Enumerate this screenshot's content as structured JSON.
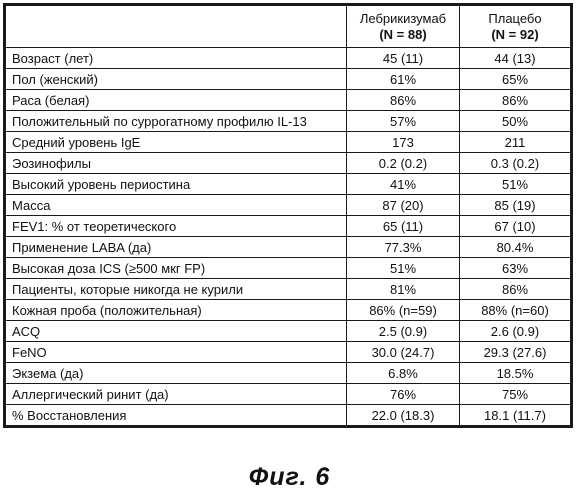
{
  "table": {
    "header": {
      "col1": "",
      "col2": {
        "name": "Лебрикизумаб",
        "n": "(N = 88)"
      },
      "col3": {
        "name": "Плацебо",
        "n": "(N = 92)"
      }
    },
    "rows": [
      {
        "label": "Возраст (лет)",
        "lebrikizumab": "45 (11)",
        "placebo": "44 (13)"
      },
      {
        "label": "Пол (женский)",
        "lebrikizumab": "61%",
        "placebo": "65%"
      },
      {
        "label": "Раса (белая)",
        "lebrikizumab": "86%",
        "placebo": "86%"
      },
      {
        "label": "Положительный по суррогатному профилю IL-13",
        "lebrikizumab": "57%",
        "placebo": "50%"
      },
      {
        "label": "Средний уровень IgE",
        "lebrikizumab": "173",
        "placebo": "211"
      },
      {
        "label": "Эозинофилы",
        "lebrikizumab": "0.2 (0.2)",
        "placebo": "0.3 (0.2)"
      },
      {
        "label": "Высокий уровень периостина",
        "lebrikizumab": "41%",
        "placebo": "51%"
      },
      {
        "label": "Масса",
        "lebrikizumab": "87 (20)",
        "placebo": "85 (19)"
      },
      {
        "label": "FEV1: % от теоретического",
        "lebrikizumab": "65 (11)",
        "placebo": "67 (10)"
      },
      {
        "label": "Применение LABA (да)",
        "lebrikizumab": "77.3%",
        "placebo": "80.4%"
      },
      {
        "label": "Высокая доза ICS (≥500 мкг FP)",
        "lebrikizumab": "51%",
        "placebo": "63%"
      },
      {
        "label": "Пациенты, которые никогда не курили",
        "lebrikizumab": "81%",
        "placebo": "86%"
      },
      {
        "label": "Кожная проба (положительная)",
        "lebrikizumab": "86% (n=59)",
        "placebo": "88% (n=60)"
      },
      {
        "label": "ACQ",
        "lebrikizumab": "2.5 (0.9)",
        "placebo": "2.6 (0.9)"
      },
      {
        "label": "FeNO",
        "lebrikizumab": "30.0 (24.7)",
        "placebo": "29.3 (27.6)"
      },
      {
        "label": "Экзема (да)",
        "lebrikizumab": "6.8%",
        "placebo": "18.5%"
      },
      {
        "label": "Аллергический ринит (да)",
        "lebrikizumab": "76%",
        "placebo": "75%"
      },
      {
        "label": "% Восстановления",
        "lebrikizumab": "22.0 (18.3)",
        "placebo": "18.1 (11.7)"
      }
    ]
  },
  "caption": "Фиг. 6"
}
